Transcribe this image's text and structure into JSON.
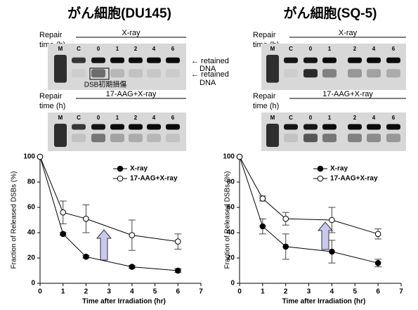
{
  "chart_data": [
    {
      "type": "line",
      "title": "がん細胞(DU145)",
      "xlabel": "Time after Irradiation (hr)",
      "ylabel": "Fraction of Released DSBs (%)",
      "xlim": [
        0,
        7
      ],
      "xticks": [
        0,
        1,
        2,
        3,
        4,
        5,
        6,
        7
      ],
      "ylim": [
        0,
        100
      ],
      "yticks": [
        0,
        20,
        40,
        60,
        80,
        100
      ],
      "series": [
        {
          "name": "X-ray",
          "color": "#000000",
          "filled": true,
          "x": [
            0,
            1,
            2,
            4,
            6
          ],
          "values": [
            100,
            39,
            21,
            13,
            10
          ],
          "errors": [
            null,
            1,
            1,
            1,
            1.5
          ]
        },
        {
          "name": "17-AAG+X-ray",
          "color": "#000000",
          "filled": false,
          "x": [
            0,
            1,
            2,
            4,
            6
          ],
          "values": [
            100,
            56,
            51,
            38,
            33
          ],
          "errors": [
            null,
            9,
            11,
            12,
            6
          ]
        }
      ]
    },
    {
      "type": "line",
      "title": "がん細胞(SQ-5)",
      "xlabel": "Time after Irradiation (hr)",
      "ylabel": "Fraction of Released DSBs (%)",
      "xlim": [
        0,
        7
      ],
      "xticks": [
        0,
        1,
        2,
        3,
        4,
        5,
        6,
        7
      ],
      "ylim": [
        0,
        100
      ],
      "yticks": [
        0,
        20,
        40,
        60,
        80,
        100
      ],
      "series": [
        {
          "name": "X-ray",
          "color": "#000000",
          "filled": true,
          "x": [
            0,
            1,
            2,
            4,
            6
          ],
          "values": [
            100,
            45,
            29,
            25,
            16
          ],
          "errors": [
            null,
            6,
            10,
            9,
            3
          ]
        },
        {
          "name": "17-AAG+X-ray",
          "color": "#000000",
          "filled": false,
          "x": [
            0,
            1,
            2,
            4,
            6
          ],
          "values": [
            100,
            67,
            51,
            50,
            39
          ],
          "errors": [
            null,
            2,
            5,
            10,
            4
          ]
        }
      ]
    }
  ],
  "gels": [
    {
      "annotations": {
        "arrow_top": [
          "← retained",
          "DNA"
        ],
        "arrow_bottom": [
          "← retained",
          "DNA"
        ],
        "box": "DSB初期損傷"
      },
      "blots": [
        {
          "treatment": "X-ray",
          "repair_label": [
            "Repair",
            "time (h)"
          ],
          "lanes": [
            "M",
            "C",
            "0",
            "1",
            "2",
            "4",
            "6"
          ]
        },
        {
          "treatment": "17-AAG+X-ray",
          "repair_label": [
            "Repair",
            "time (h)"
          ],
          "lanes": [
            "M",
            "C",
            "0",
            "1",
            "2",
            "4",
            "6"
          ]
        }
      ]
    },
    {
      "blots": [
        {
          "treatment": "X-ray",
          "repair_label": [
            "Repair",
            "time (h)"
          ],
          "lanes": [
            "M",
            "C",
            "0",
            "1",
            "2",
            "4",
            "6"
          ]
        },
        {
          "treatment": "17-AAG+X-ray",
          "repair_label": [
            "Repair",
            "time (h)"
          ],
          "lanes": [
            "M",
            "C",
            "0",
            "1",
            "2",
            "4",
            "6"
          ]
        }
      ]
    }
  ]
}
